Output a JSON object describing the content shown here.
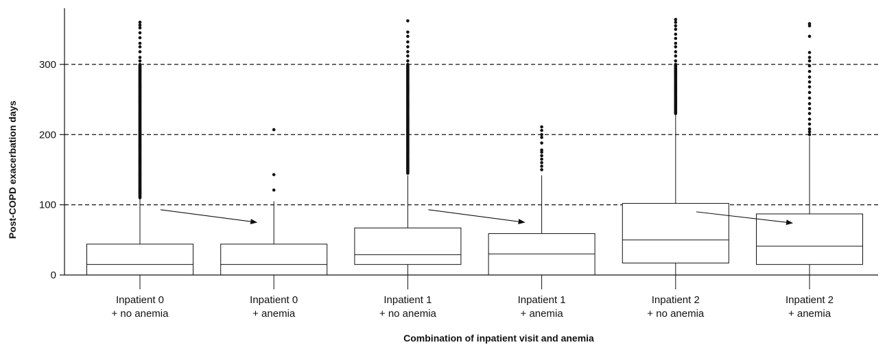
{
  "chart_data": {
    "type": "box",
    "xlabel": "Combination of inpatient visit and anemia",
    "ylabel": "Post-COPD exacerbation days",
    "ylim": [
      0,
      380
    ],
    "yticks": [
      0,
      100,
      200,
      300
    ],
    "grid": {
      "y_dashed_at": [
        100,
        200,
        300
      ]
    },
    "categories": [
      {
        "line1": "Inpatient 0",
        "line2": "+ no anemia"
      },
      {
        "line1": "Inpatient 0",
        "line2": "+ anemia"
      },
      {
        "line1": "Inpatient 1",
        "line2": "+ no anemia"
      },
      {
        "line1": "Inpatient 1",
        "line2": "+ anemia"
      },
      {
        "line1": "Inpatient 2",
        "line2": "+ no anemia"
      },
      {
        "line1": "Inpatient 2",
        "line2": "+ anemia"
      }
    ],
    "boxes": [
      {
        "q1": 0,
        "median": 15,
        "q3": 44,
        "whisker_low": 0,
        "whisker_high": 108,
        "outliers": {
          "dense_from": 110,
          "dense_to": 300,
          "sparse": [
            305,
            310,
            318,
            325,
            330,
            338,
            345,
            352,
            356,
            360
          ]
        }
      },
      {
        "q1": 0,
        "median": 15,
        "q3": 44,
        "whisker_low": 0,
        "whisker_high": 105,
        "outliers": {
          "sparse": [
            121,
            143,
            207
          ]
        }
      },
      {
        "q1": 15,
        "median": 29,
        "q3": 67,
        "whisker_low": 0,
        "whisker_high": 142,
        "outliers": {
          "dense_from": 145,
          "dense_to": 300,
          "sparse": [
            305,
            312,
            318,
            325,
            332,
            340,
            346,
            362
          ]
        }
      },
      {
        "q1": 0,
        "median": 30,
        "q3": 59,
        "whisker_low": 0,
        "whisker_high": 142,
        "outliers": {
          "sparse": [
            150,
            155,
            160,
            165,
            170,
            175,
            178,
            188,
            196,
            200,
            206,
            211
          ]
        }
      },
      {
        "q1": 17,
        "median": 50,
        "q3": 102,
        "whisker_low": 0,
        "whisker_high": 228,
        "outliers": {
          "dense_from": 230,
          "dense_to": 300,
          "sparse": [
            305,
            312,
            318,
            325,
            330,
            337,
            343,
            350,
            355,
            360,
            364
          ]
        }
      },
      {
        "q1": 15,
        "median": 41,
        "q3": 87,
        "whisker_low": 0,
        "whisker_high": 197,
        "outliers": {
          "sparse": [
            200,
            204,
            208,
            215,
            222,
            230,
            237,
            244,
            252,
            260,
            268,
            275,
            282,
            290,
            298,
            305,
            310,
            317,
            340,
            355,
            358
          ]
        }
      }
    ],
    "arrows": [
      {
        "from_category": 0,
        "to_category": 1,
        "from_y": 93,
        "to_y": 75
      },
      {
        "from_category": 2,
        "to_category": 3,
        "from_y": 93,
        "to_y": 75
      },
      {
        "from_category": 4,
        "to_category": 5,
        "from_y": 90,
        "to_y": 74
      }
    ]
  },
  "colors": {
    "ink": "#111111",
    "background": "#ffffff",
    "box_fill": "#ffffff"
  }
}
